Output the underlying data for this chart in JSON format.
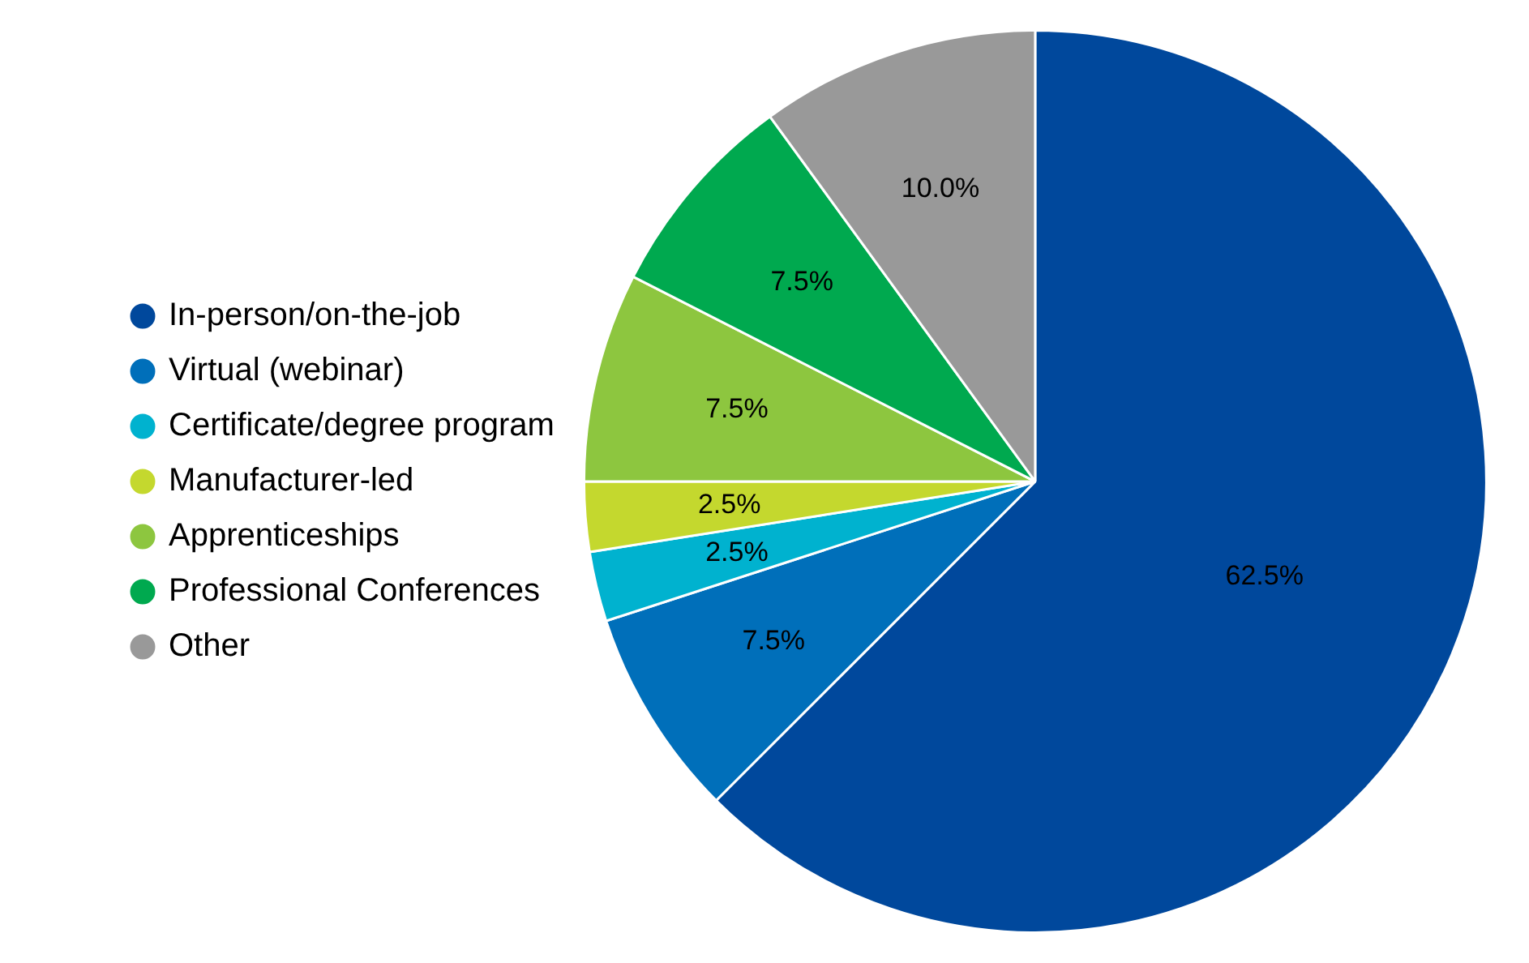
{
  "chart_data": {
    "type": "pie",
    "categories": [
      "In-person/on-the-job",
      "Virtual (webinar)",
      "Certificate/degree program",
      "Manufacturer-led",
      "Apprenticeships",
      "Professional Conferences",
      "Other"
    ],
    "values": [
      62.5,
      7.5,
      2.5,
      2.5,
      7.5,
      7.5,
      10.0
    ],
    "value_labels": [
      "62.5%",
      "7.5%",
      "2.5%",
      "2.5%",
      "7.5%",
      "7.5%",
      "10.0%"
    ],
    "colors": [
      "#00489c",
      "#006fba",
      "#00b2cf",
      "#c4d82e",
      "#8dc63f",
      "#00a94f",
      "#999999"
    ],
    "legend": "left"
  }
}
